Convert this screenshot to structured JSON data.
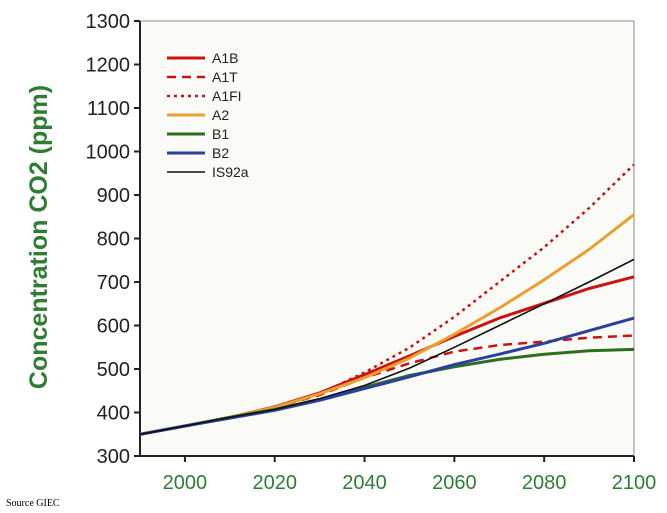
{
  "source": "Source GIEC",
  "chart_data": {
    "type": "line",
    "title": "",
    "xlabel": "",
    "ylabel": "Concentration CO2 (ppm)",
    "xlim": [
      1990,
      2100
    ],
    "ylim": [
      300,
      1300
    ],
    "xticks": [
      2000,
      2020,
      2040,
      2060,
      2080,
      2100
    ],
    "yticks": [
      300,
      400,
      500,
      600,
      700,
      800,
      900,
      1000,
      1100,
      1200,
      1300
    ],
    "x": [
      1990,
      2000,
      2010,
      2020,
      2030,
      2040,
      2050,
      2060,
      2070,
      2080,
      2090,
      2100
    ],
    "grid": false,
    "legend_position": "top-left",
    "series": [
      {
        "name": "A1B",
        "color": "#cc1111",
        "style": "solid",
        "values": [
          350,
          369,
          389,
          413,
          445,
          487,
          530,
          575,
          617,
          651,
          685,
          712
        ]
      },
      {
        "name": "A1T",
        "color": "#cc1111",
        "style": "dashed",
        "values": [
          350,
          369,
          389,
          412,
          440,
          480,
          513,
          540,
          555,
          563,
          572,
          577
        ]
      },
      {
        "name": "A1FI",
        "color": "#cc1111",
        "style": "dotted",
        "values": [
          350,
          369,
          389,
          410,
          443,
          492,
          549,
          620,
          700,
          780,
          870,
          970
        ]
      },
      {
        "name": "A2",
        "color": "#e8a030",
        "style": "solid",
        "values": [
          350,
          369,
          389,
          412,
          443,
          480,
          525,
          580,
          640,
          705,
          775,
          855
        ]
      },
      {
        "name": "B1",
        "color": "#2e6e1e",
        "style": "solid",
        "values": [
          350,
          369,
          389,
          407,
          430,
          458,
          485,
          505,
          522,
          534,
          542,
          545
        ]
      },
      {
        "name": "B2",
        "color": "#2b3f9e",
        "style": "solid",
        "values": [
          350,
          369,
          387,
          405,
          428,
          455,
          482,
          510,
          534,
          559,
          588,
          617
        ]
      },
      {
        "name": "IS92a",
        "color": "#111111",
        "style": "thin",
        "values": [
          350,
          369,
          389,
          407,
          432,
          462,
          502,
          550,
          600,
          650,
          700,
          752
        ]
      }
    ]
  }
}
